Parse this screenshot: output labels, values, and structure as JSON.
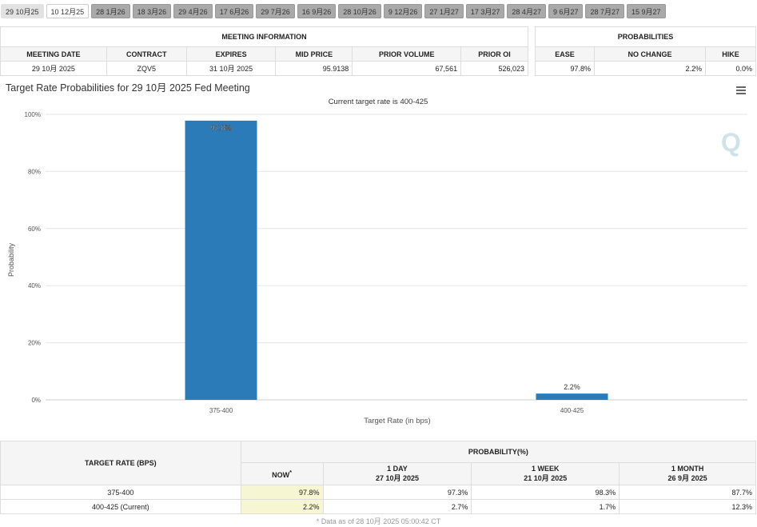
{
  "tabs": [
    "29 10月25",
    "10 12月25",
    "28 1月26",
    "18 3月26",
    "29 4月26",
    "17 6月26",
    "29 7月26",
    "16 9月26",
    "28 10月26",
    "9 12月26",
    "27 1月27",
    "17 3月27",
    "28 4月27",
    "9 6月27",
    "28 7月27",
    "15 9月27"
  ],
  "meeting_info": {
    "title": "MEETING INFORMATION",
    "headers": [
      "MEETING DATE",
      "CONTRACT",
      "EXPIRES",
      "MID PRICE",
      "PRIOR VOLUME",
      "PRIOR OI"
    ],
    "values": [
      "29 10月 2025",
      "ZQV5",
      "31 10月 2025",
      "95.9138",
      "67,561",
      "526,023"
    ]
  },
  "probabilities": {
    "title": "PROBABILITIES",
    "headers": [
      "EASE",
      "NO CHANGE",
      "HIKE"
    ],
    "values": [
      "97.8%",
      "2.2%",
      "0.0%"
    ]
  },
  "chart_data": {
    "type": "bar",
    "title": "Target Rate Probabilities for 29 10月 2025 Fed Meeting",
    "subtitle": "Current target rate is 400-425",
    "xlabel": "Target Rate (in bps)",
    "ylabel": "Probability",
    "categories": [
      "375-400",
      "400-425"
    ],
    "values": [
      97.8,
      2.2
    ],
    "data_labels": [
      "97.8%",
      "2.2%"
    ],
    "ylim": [
      0,
      100
    ],
    "yticks": [
      "0%",
      "20%",
      "40%",
      "60%",
      "80%",
      "100%"
    ],
    "color": "#2b7bb9",
    "grid": true,
    "menu_icon": "hamburger-icon"
  },
  "prob_table": {
    "col1": "TARGET RATE (BPS)",
    "group": "PROBABILITY(%)",
    "now": "NOW",
    "now_mark": "*",
    "cols": [
      {
        "label": "1 DAY",
        "date": "27 10月 2025"
      },
      {
        "label": "1 WEEK",
        "date": "21 10月 2025"
      },
      {
        "label": "1 MONTH",
        "date": "26 9月 2025"
      }
    ],
    "rows": [
      {
        "rate": "375-400",
        "now": "97.8%",
        "vals": [
          "97.3%",
          "98.3%",
          "87.7%"
        ]
      },
      {
        "rate": "400-425 (Current)",
        "now": "2.2%",
        "vals": [
          "2.7%",
          "1.7%",
          "12.3%"
        ]
      }
    ]
  },
  "footnote": "* Data as of 28 10月 2025 05:00:42 CT"
}
